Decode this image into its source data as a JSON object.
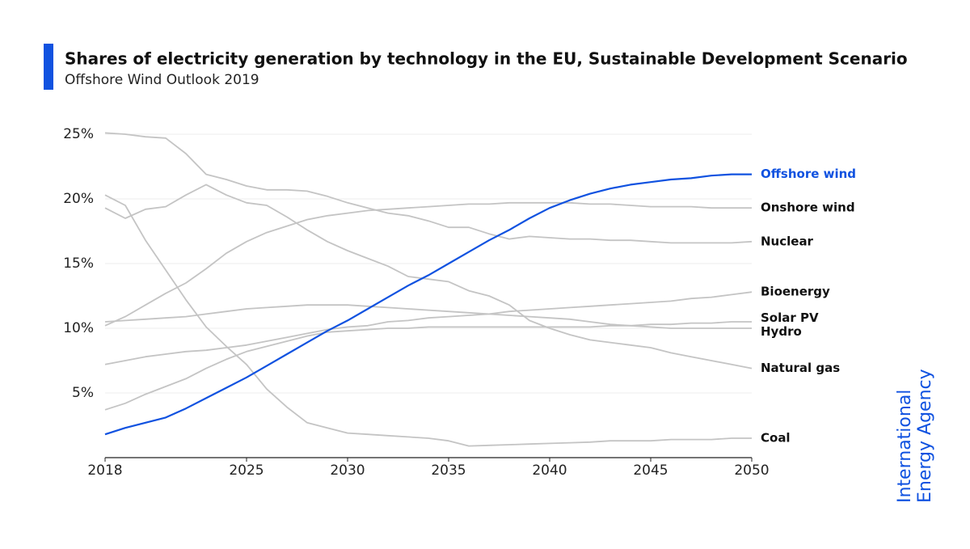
{
  "chart_data": {
    "type": "line",
    "title": "Shares of electricity generation by technology in the EU, Sustainable Development Scenario",
    "subtitle": "Offshore Wind Outlook 2019",
    "brand": [
      "International",
      "Energy Agency"
    ],
    "x": [
      2018,
      2019,
      2020,
      2021,
      2022,
      2023,
      2024,
      2025,
      2026,
      2027,
      2028,
      2029,
      2030,
      2031,
      2032,
      2033,
      2034,
      2035,
      2036,
      2037,
      2038,
      2039,
      2040,
      2041,
      2042,
      2043,
      2044,
      2045,
      2046,
      2047,
      2048,
      2049,
      2050
    ],
    "xlim": [
      2018,
      2050
    ],
    "xticks": [
      2018,
      2025,
      2030,
      2035,
      2040,
      2045,
      2050
    ],
    "ylim": [
      0,
      25
    ],
    "yticks": [
      {
        "value": 5,
        "label": "5%"
      },
      {
        "value": 10,
        "label": "10%"
      },
      {
        "value": 15,
        "label": "15%"
      },
      {
        "value": 20,
        "label": "20%"
      },
      {
        "value": 25,
        "label": "25%"
      }
    ],
    "grid": true,
    "series": [
      {
        "name": "Offshore wind",
        "color": "#1052e0",
        "label_color": "#1052e0",
        "values": [
          1.8,
          2.3,
          2.7,
          3.1,
          3.8,
          4.6,
          5.4,
          6.2,
          7.1,
          8.0,
          8.9,
          9.8,
          10.6,
          11.5,
          12.4,
          13.3,
          14.1,
          15.0,
          15.9,
          16.8,
          17.6,
          18.5,
          19.3,
          19.9,
          20.4,
          20.8,
          21.1,
          21.3,
          21.5,
          21.6,
          21.8,
          21.9,
          21.9
        ]
      },
      {
        "name": "Onshore wind",
        "color": "#c4c4c4",
        "label_color": "#111111",
        "values": [
          10.2,
          10.9,
          11.8,
          12.7,
          13.5,
          14.6,
          15.8,
          16.7,
          17.4,
          17.9,
          18.4,
          18.7,
          18.9,
          19.1,
          19.2,
          19.3,
          19.4,
          19.5,
          19.6,
          19.6,
          19.7,
          19.7,
          19.7,
          19.7,
          19.6,
          19.6,
          19.5,
          19.4,
          19.4,
          19.4,
          19.3,
          19.3,
          19.3
        ]
      },
      {
        "name": "Nuclear",
        "color": "#c4c4c4",
        "label_color": "#111111",
        "values": [
          25.1,
          25.0,
          24.8,
          24.7,
          23.5,
          21.9,
          21.5,
          21.0,
          20.7,
          20.7,
          20.6,
          20.2,
          19.7,
          19.3,
          18.9,
          18.7,
          18.3,
          17.8,
          17.8,
          17.3,
          16.9,
          17.1,
          17.0,
          16.9,
          16.9,
          16.8,
          16.8,
          16.7,
          16.6,
          16.6,
          16.6,
          16.6,
          16.7
        ]
      },
      {
        "name": "Bioenergy",
        "color": "#c4c4c4",
        "label_color": "#111111",
        "values": [
          7.2,
          7.5,
          7.8,
          8.0,
          8.2,
          8.3,
          8.5,
          8.7,
          9.0,
          9.3,
          9.6,
          9.9,
          10.1,
          10.2,
          10.5,
          10.6,
          10.8,
          10.9,
          11.0,
          11.1,
          11.3,
          11.4,
          11.5,
          11.6,
          11.7,
          11.8,
          11.9,
          12.0,
          12.1,
          12.3,
          12.4,
          12.6,
          12.8
        ]
      },
      {
        "name": "Solar PV",
        "color": "#c4c4c4",
        "label_color": "#111111",
        "values": [
          3.7,
          4.2,
          4.9,
          5.5,
          6.1,
          6.9,
          7.6,
          8.2,
          8.6,
          9.0,
          9.4,
          9.7,
          9.8,
          9.9,
          10.0,
          10.0,
          10.1,
          10.1,
          10.1,
          10.1,
          10.1,
          10.1,
          10.1,
          10.1,
          10.1,
          10.2,
          10.2,
          10.3,
          10.3,
          10.4,
          10.4,
          10.5,
          10.5
        ]
      },
      {
        "name": "Hydro",
        "color": "#c4c4c4",
        "label_color": "#111111",
        "values": [
          10.5,
          10.6,
          10.7,
          10.8,
          10.9,
          11.1,
          11.3,
          11.5,
          11.6,
          11.7,
          11.8,
          11.8,
          11.8,
          11.7,
          11.6,
          11.5,
          11.4,
          11.3,
          11.2,
          11.1,
          11.0,
          10.9,
          10.8,
          10.7,
          10.5,
          10.3,
          10.2,
          10.1,
          10.0,
          10.0,
          10.0,
          10.0,
          10.0
        ]
      },
      {
        "name": "Natural gas",
        "color": "#c4c4c4",
        "label_color": "#111111",
        "values": [
          19.3,
          18.5,
          19.2,
          19.4,
          20.3,
          21.1,
          20.3,
          19.7,
          19.5,
          18.6,
          17.6,
          16.7,
          16.0,
          15.4,
          14.8,
          14.0,
          13.8,
          13.6,
          12.9,
          12.5,
          11.8,
          10.6,
          10.0,
          9.5,
          9.1,
          8.9,
          8.7,
          8.5,
          8.1,
          7.8,
          7.5,
          7.2,
          6.9
        ]
      },
      {
        "name": "Coal",
        "color": "#c4c4c4",
        "label_color": "#111111",
        "values": [
          20.3,
          19.5,
          16.8,
          14.5,
          12.2,
          10.1,
          8.6,
          7.2,
          5.3,
          3.9,
          2.7,
          2.3,
          1.9,
          1.8,
          1.7,
          1.6,
          1.5,
          1.3,
          0.9,
          0.95,
          1.0,
          1.05,
          1.1,
          1.15,
          1.2,
          1.3,
          1.3,
          1.3,
          1.4,
          1.4,
          1.4,
          1.5,
          1.5
        ]
      }
    ]
  }
}
